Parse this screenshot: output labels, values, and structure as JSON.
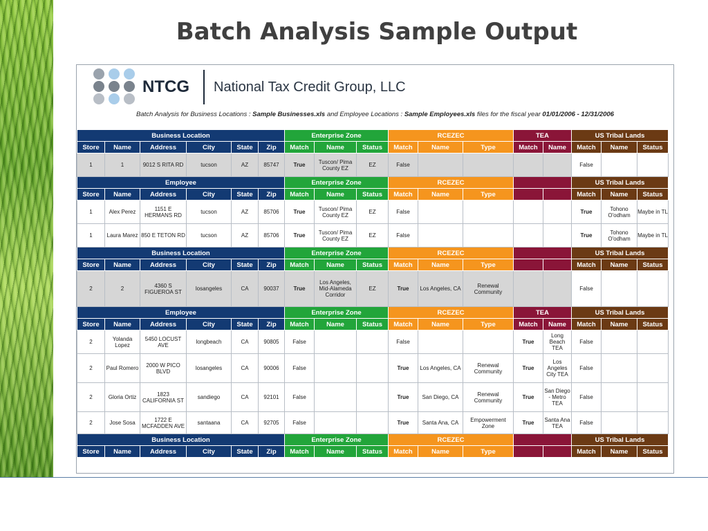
{
  "slide_title": "Batch Analysis Sample Output",
  "logo": {
    "brand": "NTCG",
    "company": "National Tax Credit Group, LLC"
  },
  "caption": {
    "p1": "Batch Analysis for Business Locations : ",
    "b1": "Sample Businesses.xls",
    "p2": " and Employee Locations : ",
    "b2": "Sample Employees.xls",
    "p3": " files for the fiscal year ",
    "b3": "01/01/2006 - 12/31/2006"
  },
  "colors": {
    "business": "#133a73",
    "enterprise_zone": "#22a53a",
    "rcezec": "#f5951e",
    "tea": "#8a1538",
    "tribal": "#6b3a14"
  },
  "group_labels": {
    "business": "Business Location",
    "employee": "Employee",
    "ez": "Enterprise Zone",
    "rc": "RCEZEC",
    "tea": "TEA",
    "us": "US Tribal Lands"
  },
  "columns": {
    "store": "Store",
    "name": "Name",
    "address": "Address",
    "city": "City",
    "state": "State",
    "zip": "Zip",
    "match": "Match",
    "status": "Status",
    "type": "Type"
  },
  "rows": {
    "r1": {
      "store": "1",
      "name": "1",
      "address": "9012 S RITA RD",
      "city": "tucson",
      "state": "AZ",
      "zip": "85747",
      "ez_match": "True",
      "ez_name": "Tuscon/ Pima County EZ",
      "ez_status": "EZ",
      "rc_match": "False",
      "us_match": "False"
    },
    "r2": {
      "store": "1",
      "name": "Alex Perez",
      "address": "1151 E HERMANS RD",
      "city": "tucson",
      "state": "AZ",
      "zip": "85706",
      "ez_match": "True",
      "ez_name": "Tuscon/ Pima County EZ",
      "ez_status": "EZ",
      "rc_match": "False",
      "us_match": "True",
      "us_name": "Tohono O'odham",
      "us_status": "Maybe in TL"
    },
    "r3": {
      "store": "1",
      "name": "Laura Marez",
      "address": "850 E TETON RD",
      "city": "tucson",
      "state": "AZ",
      "zip": "85706",
      "ez_match": "True",
      "ez_name": "Tuscon/ Pima County EZ",
      "ez_status": "EZ",
      "rc_match": "False",
      "us_match": "True",
      "us_name": "Tohono O'odham",
      "us_status": "Maybe in TL"
    },
    "r4": {
      "store": "2",
      "name": "2",
      "address": "4360 S FIGUEROA ST",
      "city": "losangeles",
      "state": "CA",
      "zip": "90037",
      "ez_match": "True",
      "ez_name": "Los Angeles, Mid-Alameda Corridor",
      "ez_status": "EZ",
      "rc_match": "True",
      "rc_name": "Los Angeles, CA",
      "rc_type": "Renewal Community",
      "us_match": "False"
    },
    "r5": {
      "store": "2",
      "name": "Yolanda Lopez",
      "address": "5450 LOCUST AVE",
      "city": "longbeach",
      "state": "CA",
      "zip": "90805",
      "ez_match": "False",
      "rc_match": "False",
      "tea_match": "True",
      "tea_name": "Long Beach TEA",
      "us_match": "False"
    },
    "r6": {
      "store": "2",
      "name": "Paul Romero",
      "address": "2000 W PICO BLVD",
      "city": "losangeles",
      "state": "CA",
      "zip": "90006",
      "ez_match": "False",
      "rc_match": "True",
      "rc_name": "Los Angeles, CA",
      "rc_type": "Renewal Community",
      "tea_match": "True",
      "tea_name": "Los Angeles City TEA",
      "us_match": "False"
    },
    "r7": {
      "store": "2",
      "name": "Gloria Ortiz",
      "address": "1823 CALIFORNIA ST",
      "city": "sandiego",
      "state": "CA",
      "zip": "92101",
      "ez_match": "False",
      "rc_match": "True",
      "rc_name": "San Diego, CA",
      "rc_type": "Renewal Community",
      "tea_match": "True",
      "tea_name": "San Diego - Metro TEA",
      "us_match": "False"
    },
    "r8": {
      "store": "2",
      "name": "Jose Sosa",
      "address": "1722 E MCFADDEN AVE",
      "city": "santaana",
      "state": "CA",
      "zip": "92705",
      "ez_match": "False",
      "rc_match": "True",
      "rc_name": "Santa Ana, CA",
      "rc_type": "Empowerment Zone",
      "tea_match": "True",
      "tea_name": "Santa Ana TEA",
      "us_match": "False"
    }
  }
}
